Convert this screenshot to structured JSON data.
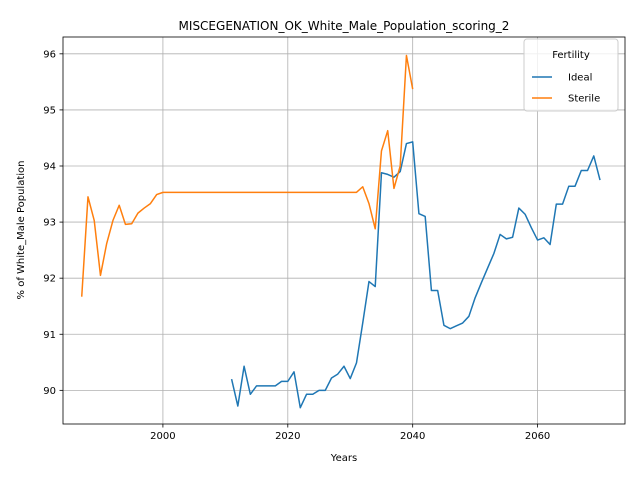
{
  "chart_data": {
    "type": "line",
    "title": "MISCEGENATION_OK_White_Male_Population_scoring_2",
    "xlabel": "Years",
    "ylabel": "% of White_Male Population",
    "xlim": [
      1984,
      2074
    ],
    "ylim": [
      89.4,
      96.3
    ],
    "xticks": [
      2000,
      2020,
      2040,
      2060
    ],
    "yticks": [
      90,
      91,
      92,
      93,
      94,
      95,
      96
    ],
    "grid": true,
    "legend": {
      "title": "Fertility",
      "position": "top-right"
    },
    "series": [
      {
        "name": "Ideal",
        "color": "#1f77b4",
        "x": [
          2011,
          2012,
          2013,
          2014,
          2015,
          2016,
          2017,
          2018,
          2019,
          2020,
          2021,
          2022,
          2023,
          2024,
          2025,
          2026,
          2027,
          2028,
          2029,
          2030,
          2031,
          2032,
          2033,
          2034,
          2035,
          2036,
          2037,
          2038,
          2039,
          2040,
          2041,
          2042,
          2043,
          2044,
          2045,
          2046,
          2047,
          2048,
          2049,
          2050,
          2051,
          2052,
          2053,
          2054,
          2055,
          2056,
          2057,
          2058,
          2059,
          2060,
          2061,
          2062,
          2063,
          2064,
          2065,
          2066,
          2067,
          2068,
          2069,
          2070
        ],
        "values": [
          90.2,
          89.72,
          90.43,
          89.93,
          90.08,
          90.08,
          90.08,
          90.08,
          90.16,
          90.16,
          90.33,
          89.69,
          89.93,
          89.93,
          90.0,
          90.0,
          90.22,
          90.29,
          90.43,
          90.21,
          90.49,
          91.2,
          91.94,
          91.85,
          93.88,
          93.85,
          93.8,
          93.9,
          94.4,
          94.43,
          93.15,
          93.1,
          91.78,
          91.78,
          91.16,
          91.1,
          91.15,
          91.2,
          91.32,
          91.65,
          91.92,
          92.18,
          92.44,
          92.78,
          92.7,
          92.73,
          93.25,
          93.14,
          92.9,
          92.68,
          92.72,
          92.6,
          93.32,
          93.32,
          93.64,
          93.64,
          93.92,
          93.92,
          94.18,
          93.75
        ]
      },
      {
        "name": "Sterile",
        "color": "#ff7f0e",
        "x": [
          1987,
          1988,
          1989,
          1990,
          1991,
          1992,
          1993,
          1994,
          1995,
          1996,
          1997,
          1998,
          1999,
          2000,
          2030,
          2031,
          2032,
          2033,
          2034,
          2035,
          2036,
          2037,
          2038,
          2039,
          2040
        ],
        "values": [
          91.67,
          93.45,
          93.03,
          92.05,
          92.62,
          93.03,
          93.3,
          92.96,
          92.97,
          93.16,
          93.25,
          93.33,
          93.49,
          93.53,
          93.53,
          93.53,
          93.63,
          93.33,
          92.88,
          94.27,
          94.63,
          93.6,
          94.0,
          95.97,
          95.37
        ]
      }
    ]
  }
}
